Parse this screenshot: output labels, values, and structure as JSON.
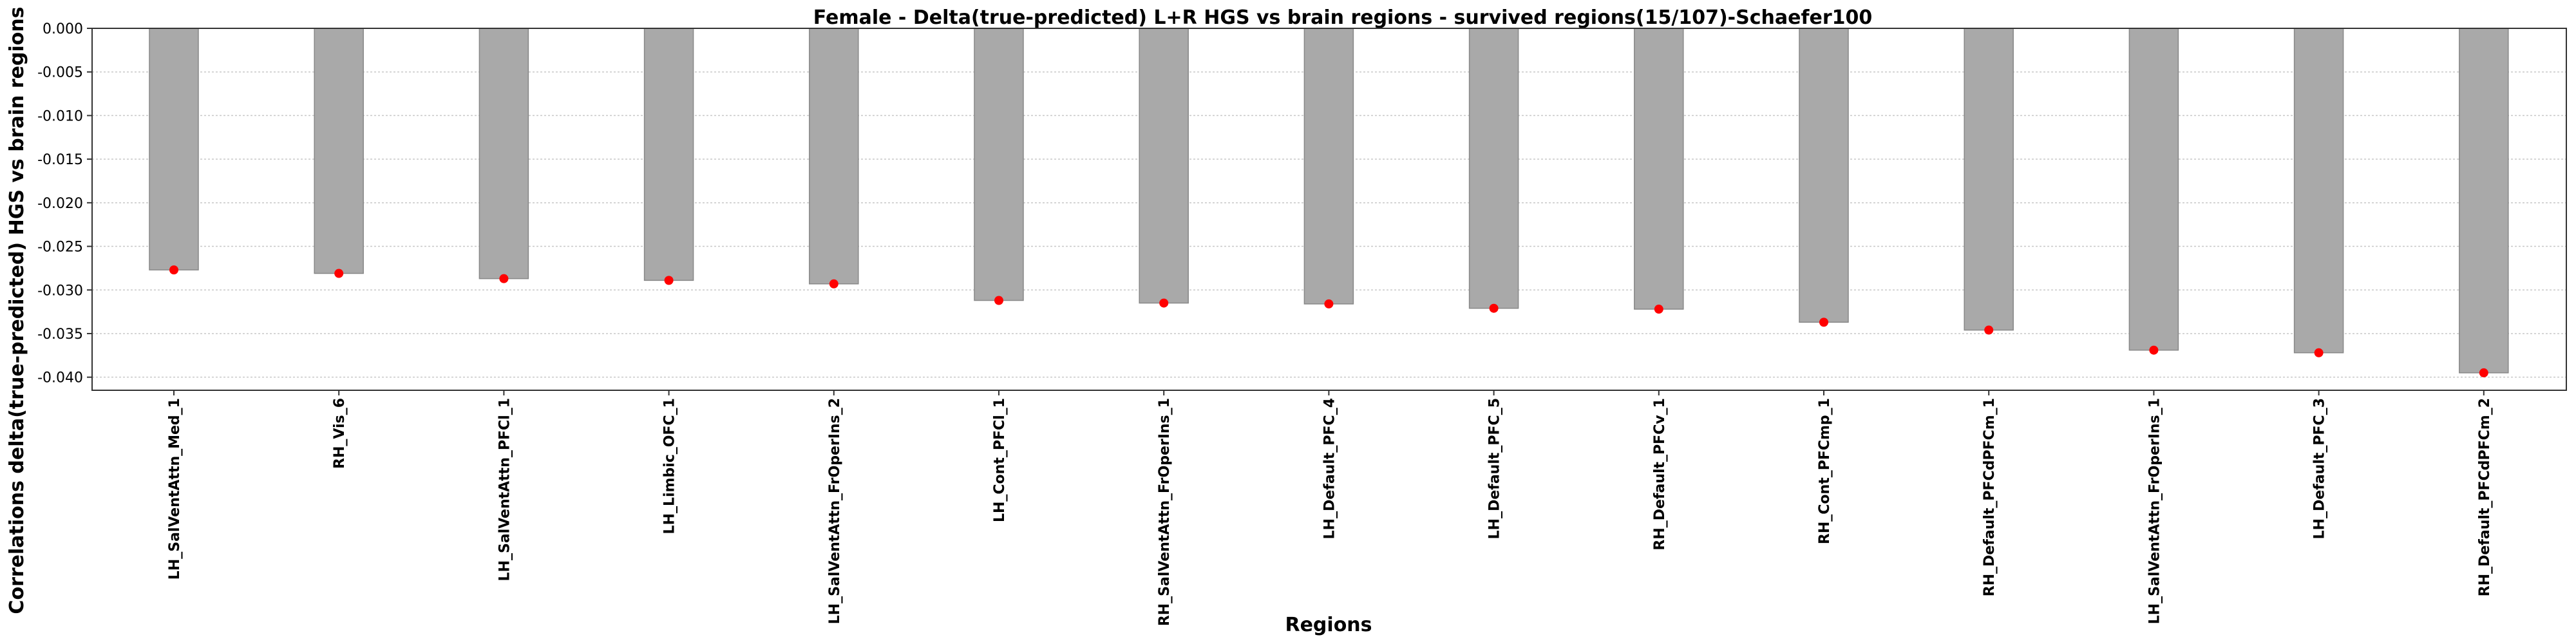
{
  "chart_data": {
    "type": "bar",
    "title": "Female - Delta(true-predicted) L+R HGS vs brain regions - survived regions(15/107)-Schaefer100",
    "xlabel": "Regions",
    "ylabel": "Correlations delta(true-predicted) HGS vs brain regions",
    "categories": [
      "LH_SalVentAttn_Med_1",
      "RH_Vis_6",
      "LH_SalVentAttn_PFCl_1",
      "LH_Limbic_OFC_1",
      "LH_SalVentAttn_FrOperIns_2",
      "LH_Cont_PFCl_1",
      "RH_SalVentAttn_FrOperIns_1",
      "LH_Default_PFC_4",
      "LH_Default_PFC_5",
      "RH_Default_PFCv_1",
      "RH_Cont_PFCmp_1",
      "RH_Default_PFCdPFCm_1",
      "LH_SalVentAttn_FrOperIns_1",
      "LH_Default_PFC_3",
      "RH_Default_PFCdPFCm_2"
    ],
    "values": [
      -0.0277,
      -0.0281,
      -0.0287,
      -0.0289,
      -0.0293,
      -0.0312,
      -0.0315,
      -0.0316,
      -0.0321,
      -0.0322,
      -0.0337,
      -0.0346,
      -0.0369,
      -0.0372,
      -0.0395
    ],
    "ylim": [
      -0.0415,
      0.0
    ],
    "yticks": [
      "0.000",
      "-0.005",
      "-0.010",
      "-0.015",
      "-0.020",
      "-0.025",
      "-0.030",
      "-0.035",
      "-0.040"
    ],
    "ytick_values": [
      0.0,
      -0.005,
      -0.01,
      -0.015,
      -0.02,
      -0.025,
      -0.03,
      -0.035,
      -0.04
    ],
    "grid": true,
    "bar_color": "#a9a9a9",
    "marker_color": "#ff0000"
  }
}
